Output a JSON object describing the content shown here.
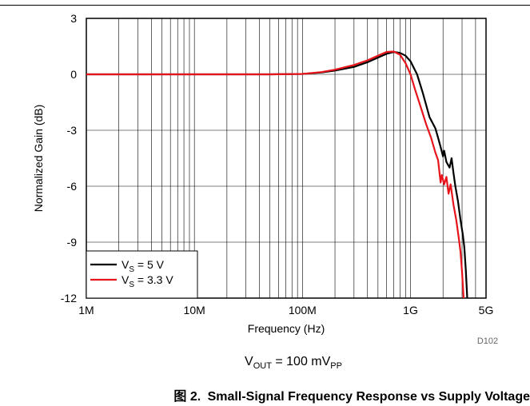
{
  "chart_data": {
    "type": "line",
    "xlabel": "Frequency (Hz)",
    "ylabel": "Normalized Gain (dB)",
    "x_scale": "log",
    "xlim": [
      1000000,
      5000000000
    ],
    "ylim": [
      -12,
      3
    ],
    "x_ticks": [
      {
        "value": 1000000,
        "label": "1M"
      },
      {
        "value": 10000000,
        "label": "10M"
      },
      {
        "value": 100000000,
        "label": "100M"
      },
      {
        "value": 1000000000,
        "label": "1G"
      },
      {
        "value": 5000000000,
        "label": "5G"
      }
    ],
    "y_ticks": [
      {
        "value": 3,
        "label": "3"
      },
      {
        "value": 0,
        "label": "0"
      },
      {
        "value": -3,
        "label": "-3"
      },
      {
        "value": -6,
        "label": "-6"
      },
      {
        "value": -9,
        "label": "-9"
      },
      {
        "value": -12,
        "label": "-12"
      }
    ],
    "grid": true,
    "legend_position": "bottom-left",
    "series": [
      {
        "name": "V_S = 5 V",
        "legend": {
          "main": "V",
          "sub": "S",
          "rest": " = 5 V"
        },
        "color": "#000000",
        "points": [
          [
            1000000,
            0
          ],
          [
            10000000,
            0
          ],
          [
            50000000,
            0
          ],
          [
            100000000,
            0.02
          ],
          [
            150000000,
            0.1
          ],
          [
            200000000,
            0.2
          ],
          [
            300000000,
            0.4
          ],
          [
            400000000,
            0.65
          ],
          [
            500000000,
            0.9
          ],
          [
            600000000,
            1.1
          ],
          [
            700000000,
            1.2
          ],
          [
            800000000,
            1.15
          ],
          [
            900000000,
            1.0
          ],
          [
            1000000000,
            0.7
          ],
          [
            1150000000,
            0.0
          ],
          [
            1300000000,
            -1.0
          ],
          [
            1500000000,
            -2.3
          ],
          [
            1700000000,
            -2.9
          ],
          [
            1800000000,
            -3.4
          ],
          [
            1900000000,
            -3.9
          ],
          [
            2000000000,
            -4.4
          ],
          [
            2050000000,
            -4.1
          ],
          [
            2150000000,
            -4.7
          ],
          [
            2300000000,
            -5.0
          ],
          [
            2400000000,
            -4.5
          ],
          [
            2500000000,
            -5.3
          ],
          [
            2600000000,
            -6.0
          ],
          [
            2750000000,
            -6.8
          ],
          [
            2900000000,
            -7.8
          ],
          [
            3050000000,
            -8.6
          ],
          [
            3150000000,
            -9.3
          ],
          [
            3250000000,
            -10.5
          ],
          [
            3350000000,
            -12.0
          ]
        ]
      },
      {
        "name": "V_S = 3.3 V",
        "legend": {
          "main": "V",
          "sub": "S",
          "rest": " = 3.3 V"
        },
        "color": "#e8141b",
        "points": [
          [
            1000000,
            0
          ],
          [
            10000000,
            0
          ],
          [
            50000000,
            0
          ],
          [
            100000000,
            0.02
          ],
          [
            150000000,
            0.12
          ],
          [
            200000000,
            0.25
          ],
          [
            300000000,
            0.5
          ],
          [
            400000000,
            0.75
          ],
          [
            500000000,
            1.0
          ],
          [
            600000000,
            1.2
          ],
          [
            700000000,
            1.22
          ],
          [
            800000000,
            1.05
          ],
          [
            900000000,
            0.6
          ],
          [
            1000000000,
            0.0
          ],
          [
            1100000000,
            -0.8
          ],
          [
            1250000000,
            -1.8
          ],
          [
            1400000000,
            -2.7
          ],
          [
            1550000000,
            -3.4
          ],
          [
            1700000000,
            -4.2
          ],
          [
            1800000000,
            -4.6
          ],
          [
            1900000000,
            -5.8
          ],
          [
            1950000000,
            -5.4
          ],
          [
            2050000000,
            -5.9
          ],
          [
            2150000000,
            -5.5
          ],
          [
            2250000000,
            -6.4
          ],
          [
            2350000000,
            -5.9
          ],
          [
            2500000000,
            -7.0
          ],
          [
            2650000000,
            -7.8
          ],
          [
            2800000000,
            -8.8
          ],
          [
            2900000000,
            -9.5
          ],
          [
            3000000000,
            -10.6
          ],
          [
            3100000000,
            -12.0
          ]
        ]
      }
    ],
    "annotations": [
      {
        "text": "D102"
      },
      {
        "text": "V_OUT = 100 mV_PP",
        "parts": {
          "v": "V",
          "v_sub": "OUT",
          "mid": " = 100 mV",
          "tail_sub": "PP"
        }
      }
    ]
  },
  "caption": {
    "number": "图 2.",
    "text": "Small-Signal Frequency Response vs Supply Voltage"
  }
}
